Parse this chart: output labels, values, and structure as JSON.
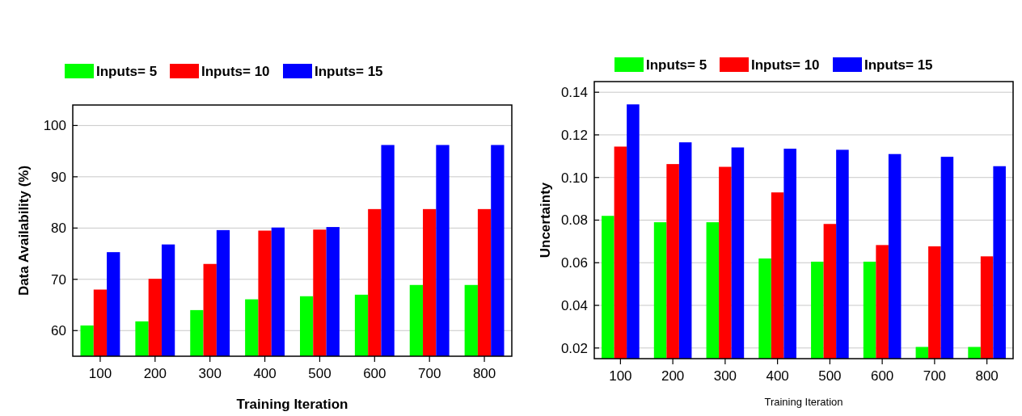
{
  "chart_data": [
    {
      "type": "bar",
      "xlabel": "Training Iteration",
      "ylabel": "Data Availability (%)",
      "categories": [
        "100",
        "200",
        "300",
        "400",
        "500",
        "600",
        "700",
        "800"
      ],
      "series": [
        {
          "name": "Inputs= 5",
          "color": "#00ff00",
          "values": [
            61,
            61.8,
            64,
            66.1,
            66.7,
            67,
            68.9,
            68.9
          ]
        },
        {
          "name": "Inputs= 10",
          "color": "#ff0000",
          "values": [
            68,
            70.1,
            73,
            79.5,
            79.7,
            83.7,
            83.7,
            83.7
          ]
        },
        {
          "name": "Inputs= 15",
          "color": "#0000ff",
          "values": [
            75.3,
            76.8,
            79.6,
            80.1,
            80.2,
            96.2,
            96.2,
            96.2
          ]
        }
      ],
      "ylim": [
        55,
        104
      ],
      "yticks": [
        60,
        70,
        80,
        90,
        100
      ],
      "grid": "y",
      "legend": "top left"
    },
    {
      "type": "bar",
      "xlabel": "Training Iteration",
      "ylabel": "Uncertainty",
      "categories": [
        "100",
        "200",
        "300",
        "400",
        "500",
        "600",
        "700",
        "800"
      ],
      "series": [
        {
          "name": "Inputs= 5",
          "color": "#00ff00",
          "values": [
            0.082,
            0.079,
            0.079,
            0.062,
            0.0605,
            0.0605,
            0.0205,
            0.0205
          ]
        },
        {
          "name": "Inputs= 10",
          "color": "#ff0000",
          "values": [
            0.1145,
            0.1063,
            0.105,
            0.093,
            0.0782,
            0.0683,
            0.0677,
            0.063
          ]
        },
        {
          "name": "Inputs= 15",
          "color": "#0000ff",
          "values": [
            0.1343,
            0.1165,
            0.1141,
            0.1135,
            0.113,
            0.111,
            0.1097,
            0.1053
          ]
        }
      ],
      "ylim": [
        0.015,
        0.145
      ],
      "yticks": [
        {
          "value": 0.02,
          "label": "0.02"
        },
        {
          "value": 0.04,
          "label": "0.04"
        },
        {
          "value": 0.06,
          "label": "0.06"
        },
        {
          "value": 0.08,
          "label": "0.08"
        },
        {
          "value": 0.1,
          "label": "0.10"
        },
        {
          "value": 0.12,
          "label": "0.12"
        },
        {
          "value": 0.14,
          "label": "0.14"
        }
      ],
      "grid": "y",
      "legend": "top"
    }
  ]
}
